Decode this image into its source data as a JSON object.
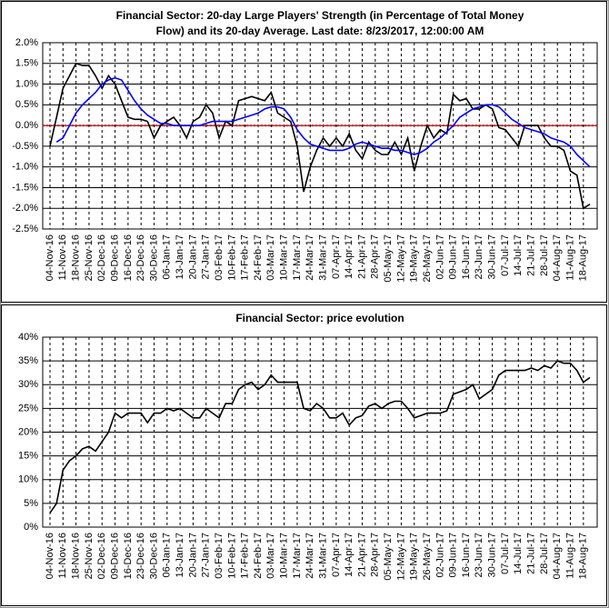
{
  "chart_data": [
    {
      "type": "line",
      "title": [
        "Financial Sector: 20-day Large Players' Strength (in Percentage of Total Money",
        "Flow) and its 20-day Average. Last date: 8/23/2017, 12:00:00 AM"
      ],
      "categories": [
        "04-Nov-16",
        null,
        "11-Nov-16",
        null,
        "18-Nov-16",
        null,
        "25-Nov-16",
        null,
        "02-Dec-16",
        null,
        "09-Dec-16",
        null,
        "16-Dec-16",
        null,
        "23-Dec-16",
        null,
        "30-Dec-16",
        null,
        "06-Jan-17",
        null,
        "13-Jan-17",
        null,
        "20-Jan-17",
        null,
        "27-Jan-17",
        null,
        "03-Feb-17",
        null,
        "10-Feb-17",
        null,
        "17-Feb-17",
        null,
        "24-Feb-17",
        null,
        "03-Mar-17",
        null,
        "10-Mar-17",
        null,
        "17-Mar-17",
        null,
        "24-Mar-17",
        null,
        "31-Mar-17",
        null,
        "07-Apr-17",
        null,
        "14-Apr-17",
        null,
        "21-Apr-17",
        null,
        "28-Apr-17",
        null,
        "05-May-17",
        null,
        "12-May-17",
        null,
        "19-May-17",
        null,
        "26-May-17",
        null,
        "02-Jun-17",
        null,
        "09-Jun-17",
        null,
        "16-Jun-17",
        null,
        "23-Jun-17",
        null,
        "30-Jun-17",
        null,
        "07-Jul-17",
        null,
        "14-Jul-17",
        null,
        "21-Jul-17",
        null,
        "28-Jul-17",
        null,
        "04-Aug-17",
        null,
        "11-Aug-17",
        null,
        "18-Aug-17",
        null
      ],
      "series": [
        {
          "color": "#000000",
          "values": [
            -0.5,
            0.2,
            0.9,
            1.2,
            1.5,
            1.45,
            1.45,
            1.2,
            0.9,
            1.2,
            1.0,
            0.6,
            0.2,
            0.15,
            0.15,
            0.1,
            -0.3,
            0.0,
            0.1,
            0.2,
            0.0,
            -0.3,
            0.1,
            0.2,
            0.5,
            0.3,
            -0.3,
            0.1,
            0.0,
            0.6,
            0.65,
            0.7,
            0.65,
            0.6,
            0.8,
            0.3,
            0.2,
            0.1,
            -0.5,
            -1.6,
            -1.0,
            -0.6,
            -0.3,
            -0.5,
            -0.3,
            -0.5,
            -0.2,
            -0.6,
            -0.8,
            -0.4,
            -0.6,
            -0.7,
            -0.7,
            -0.4,
            -0.7,
            -0.3,
            -1.1,
            -0.5,
            0.0,
            -0.3,
            -0.1,
            -0.2,
            0.75,
            0.6,
            0.65,
            0.4,
            0.4,
            0.5,
            0.4,
            -0.05,
            -0.1,
            -0.3,
            -0.5,
            0.0,
            0.0,
            0.0,
            -0.3,
            -0.5,
            -0.5,
            -0.6,
            -1.1,
            -1.2,
            -2.0,
            -1.9
          ]
        },
        {
          "color": "#0000ff",
          "values": [
            null,
            -0.4,
            -0.3,
            0.0,
            0.3,
            0.5,
            0.65,
            0.8,
            1.0,
            1.1,
            1.15,
            1.1,
            0.85,
            0.6,
            0.4,
            0.25,
            0.15,
            0.05,
            0.05,
            0.0,
            0.0,
            0.0,
            0.0,
            0.0,
            0.05,
            0.1,
            0.1,
            0.1,
            0.1,
            0.15,
            0.2,
            0.25,
            0.3,
            0.4,
            0.45,
            0.45,
            0.4,
            0.2,
            -0.1,
            -0.3,
            -0.45,
            -0.5,
            -0.55,
            -0.6,
            -0.6,
            -0.6,
            -0.55,
            -0.45,
            -0.4,
            -0.45,
            -0.5,
            -0.55,
            -0.55,
            -0.6,
            -0.6,
            -0.65,
            -0.7,
            -0.65,
            -0.55,
            -0.4,
            -0.3,
            -0.15,
            0.0,
            0.2,
            0.3,
            0.4,
            0.45,
            0.5,
            0.5,
            0.45,
            0.3,
            0.15,
            0.05,
            -0.05,
            -0.1,
            -0.15,
            -0.2,
            -0.3,
            -0.35,
            -0.4,
            -0.5,
            -0.7,
            -0.85,
            -1.0
          ]
        }
      ],
      "ylim": [
        -2.5,
        2.0
      ],
      "yticks": [
        {
          "value": 2.0,
          "label": "2.0%"
        },
        {
          "value": 1.5,
          "label": "1.5%"
        },
        {
          "value": 1.0,
          "label": "1.0%"
        },
        {
          "value": 0.5,
          "label": "0.5%"
        },
        {
          "value": 0.0,
          "label": "0.0%"
        },
        {
          "value": -0.5,
          "label": "-0.5%"
        },
        {
          "value": -1.0,
          "label": "-1.0%"
        },
        {
          "value": -1.5,
          "label": "-1.5%"
        },
        {
          "value": -2.0,
          "label": "-2.0%"
        },
        {
          "value": -2.5,
          "label": "-2.5%"
        }
      ],
      "grid": true,
      "reference_line": {
        "value": 0,
        "color": "#ff0000"
      }
    },
    {
      "type": "line",
      "title": [
        "Financial Sector: price evolution"
      ],
      "categories": [
        "04-Nov-16",
        null,
        "11-Nov-16",
        null,
        "18-Nov-16",
        null,
        "25-Nov-16",
        null,
        "02-Dec-16",
        null,
        "09-Dec-16",
        null,
        "16-Dec-16",
        null,
        "23-Dec-16",
        null,
        "30-Dec-16",
        null,
        "06-Jan-17",
        null,
        "13-Jan-17",
        null,
        "20-Jan-17",
        null,
        "27-Jan-17",
        null,
        "03-Feb-17",
        null,
        "10-Feb-17",
        null,
        "17-Feb-17",
        null,
        "24-Feb-17",
        null,
        "03-Mar-17",
        null,
        "10-Mar-17",
        null,
        "17-Mar-17",
        null,
        "24-Mar-17",
        null,
        "31-Mar-17",
        null,
        "07-Apr-17",
        null,
        "14-Apr-17",
        null,
        "21-Apr-17",
        null,
        "28-Apr-17",
        null,
        "05-May-17",
        null,
        "12-May-17",
        null,
        "19-May-17",
        null,
        "26-May-17",
        null,
        "02-Jun-17",
        null,
        "09-Jun-17",
        null,
        "16-Jun-17",
        null,
        "23-Jun-17",
        null,
        "30-Jun-17",
        null,
        "07-Jul-17",
        null,
        "14-Jul-17",
        null,
        "21-Jul-17",
        null,
        "28-Jul-17",
        null,
        "04-Aug-17",
        null,
        "11-Aug-17",
        null,
        "18-Aug-17",
        null
      ],
      "series": [
        {
          "color": "#000000",
          "values": [
            3,
            5,
            12,
            14,
            15,
            16.5,
            17,
            16,
            18,
            20,
            24,
            23,
            24,
            24,
            24,
            22,
            24,
            24,
            25,
            24.5,
            25,
            24,
            23,
            23,
            25,
            24,
            23,
            26,
            26,
            29,
            30,
            30.5,
            29,
            30,
            32,
            30.5,
            30.5,
            30.5,
            30.5,
            25,
            24.5,
            26,
            25,
            23,
            23,
            24,
            21.5,
            23,
            23.5,
            25.5,
            26,
            25,
            26,
            26.5,
            26.5,
            25,
            23,
            23.5,
            24,
            24,
            24,
            24.5,
            28,
            28.5,
            29,
            30,
            27,
            28,
            29,
            32,
            33,
            33,
            33,
            33,
            33.5,
            33,
            34,
            33.5,
            35,
            34.5,
            34.5,
            33,
            30.5,
            31.5
          ]
        }
      ],
      "ylim": [
        0,
        40
      ],
      "yticks": [
        {
          "value": 40,
          "label": "40%"
        },
        {
          "value": 35,
          "label": "35%"
        },
        {
          "value": 30,
          "label": "30%"
        },
        {
          "value": 25,
          "label": "25%"
        },
        {
          "value": 20,
          "label": "20%"
        },
        {
          "value": 15,
          "label": "15%"
        },
        {
          "value": 10,
          "label": "10%"
        },
        {
          "value": 5,
          "label": "5%"
        },
        {
          "value": 0,
          "label": "0%"
        }
      ],
      "grid": true
    }
  ]
}
